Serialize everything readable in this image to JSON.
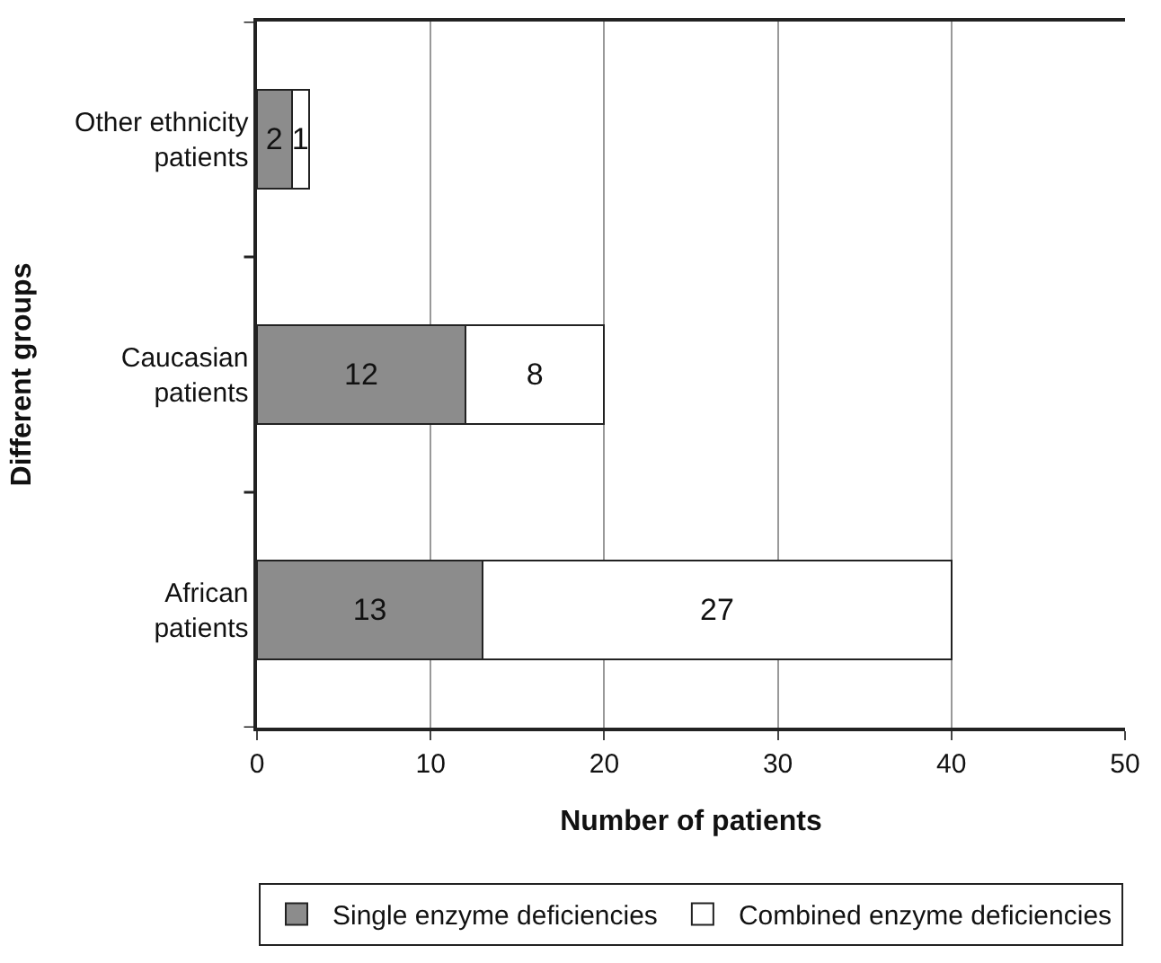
{
  "chart_data": {
    "type": "bar",
    "orientation": "horizontal",
    "stacked": true,
    "xlabel": "Number of patients",
    "ylabel": "Different groups",
    "categories": [
      "Other ethnicity patients",
      "Caucasian patients",
      "African patients"
    ],
    "series": [
      {
        "name": "Single enzyme deficiencies",
        "color": "#8c8c8c",
        "values": [
          2,
          12,
          13
        ]
      },
      {
        "name": "Combined enzyme deficiencies",
        "color": "#ffffff",
        "values": [
          1,
          8,
          27
        ]
      }
    ],
    "xlim": [
      0,
      50
    ],
    "xticks": [
      0,
      10,
      20,
      30,
      40,
      50
    ],
    "grid": "x",
    "legend": "bottom",
    "data_labels": true
  }
}
